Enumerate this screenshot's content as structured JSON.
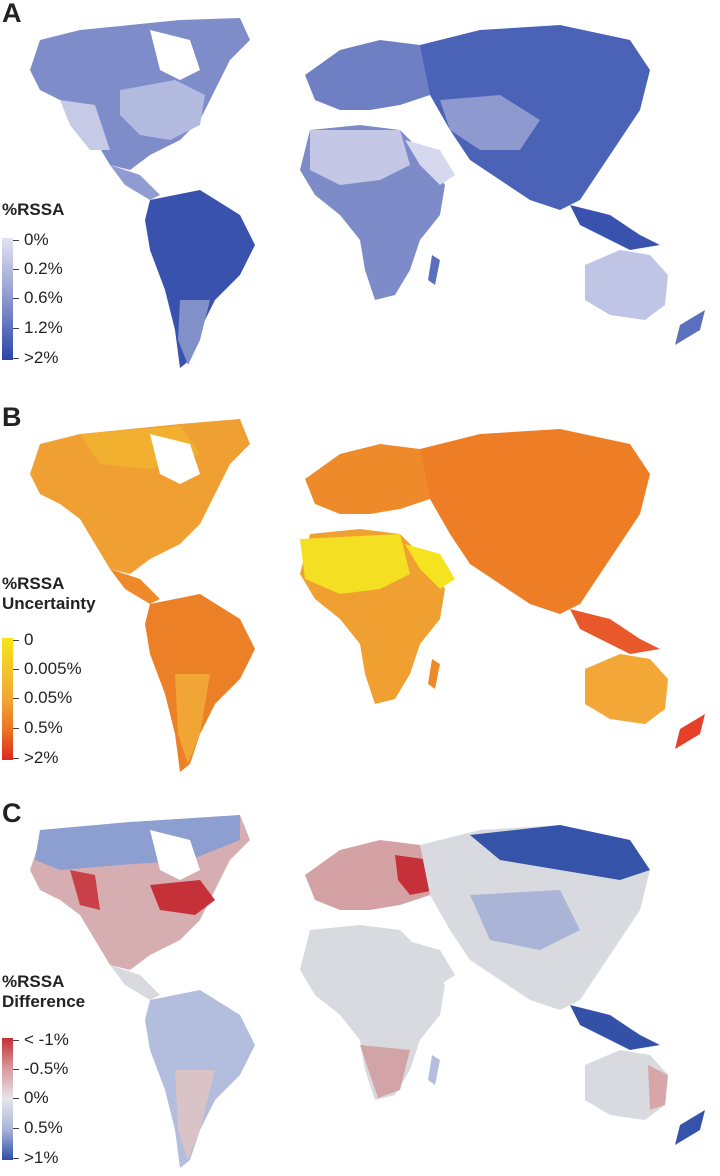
{
  "panels": [
    {
      "letter": "A",
      "legend_title": [
        "%RSSA"
      ],
      "ticks": [
        "0%",
        "0.2%",
        "0.6%",
        "1.2%",
        ">2%"
      ],
      "colors": {
        "light": "#d6d8ec",
        "mid1": "#b7bde0",
        "mid2": "#8c97d0",
        "mid3": "#6376c0",
        "dark": "#3953ae",
        "darkest": "#2c46a4"
      }
    },
    {
      "letter": "B",
      "legend_title": [
        "%RSSA",
        "Uncertainty"
      ],
      "ticks": [
        "0",
        "0.005%",
        "0.05%",
        "0.5%",
        ">2%"
      ],
      "colors": {
        "yellow": "#f7e51a",
        "yellow2": "#f4c52a",
        "orange1": "#f2a635",
        "orange2": "#ef8a2a",
        "orange3": "#ec7424",
        "red": "#e0291e"
      }
    },
    {
      "letter": "C",
      "legend_title": [
        "%RSSA",
        "Difference"
      ],
      "ticks": [
        "< -1%",
        "-0.5%",
        "0%",
        "0.5%",
        ">1%"
      ],
      "colors": {
        "red": "#c53039",
        "lightred": "#d79a9c",
        "neutral": "#d9dadf",
        "lightblue": "#a9b4d6",
        "blue": "#6d84c3",
        "darkblue": "#2e4ea6"
      }
    }
  ]
}
